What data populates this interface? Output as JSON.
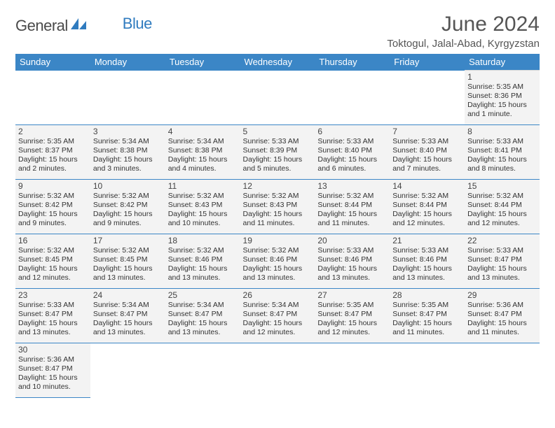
{
  "logo": {
    "text_general": "General",
    "text_blue": "Blue"
  },
  "header": {
    "month_title": "June 2024",
    "location": "Toktogul, Jalal-Abad, Kyrgyzstan"
  },
  "colors": {
    "header_bg": "#3b86c6",
    "header_text": "#ffffff",
    "cell_bg": "#f3f3f3",
    "cell_border_top": "#d9d9d9",
    "cell_border_bottom": "#3b86c6",
    "logo_blue": "#2f7bbf",
    "title_color": "#555555"
  },
  "typography": {
    "month_title_fontsize": 30,
    "location_fontsize": 15,
    "weekday_fontsize": 13,
    "daynum_fontsize": 12,
    "dayinfo_fontsize": 10.5
  },
  "calendar": {
    "weekdays": [
      "Sunday",
      "Monday",
      "Tuesday",
      "Wednesday",
      "Thursday",
      "Friday",
      "Saturday"
    ],
    "weeks": [
      [
        null,
        null,
        null,
        null,
        null,
        null,
        {
          "n": "1",
          "sunrise": "Sunrise: 5:35 AM",
          "sunset": "Sunset: 8:36 PM",
          "daylight": "Daylight: 15 hours and 1 minute."
        }
      ],
      [
        {
          "n": "2",
          "sunrise": "Sunrise: 5:35 AM",
          "sunset": "Sunset: 8:37 PM",
          "daylight": "Daylight: 15 hours and 2 minutes."
        },
        {
          "n": "3",
          "sunrise": "Sunrise: 5:34 AM",
          "sunset": "Sunset: 8:38 PM",
          "daylight": "Daylight: 15 hours and 3 minutes."
        },
        {
          "n": "4",
          "sunrise": "Sunrise: 5:34 AM",
          "sunset": "Sunset: 8:38 PM",
          "daylight": "Daylight: 15 hours and 4 minutes."
        },
        {
          "n": "5",
          "sunrise": "Sunrise: 5:33 AM",
          "sunset": "Sunset: 8:39 PM",
          "daylight": "Daylight: 15 hours and 5 minutes."
        },
        {
          "n": "6",
          "sunrise": "Sunrise: 5:33 AM",
          "sunset": "Sunset: 8:40 PM",
          "daylight": "Daylight: 15 hours and 6 minutes."
        },
        {
          "n": "7",
          "sunrise": "Sunrise: 5:33 AM",
          "sunset": "Sunset: 8:40 PM",
          "daylight": "Daylight: 15 hours and 7 minutes."
        },
        {
          "n": "8",
          "sunrise": "Sunrise: 5:33 AM",
          "sunset": "Sunset: 8:41 PM",
          "daylight": "Daylight: 15 hours and 8 minutes."
        }
      ],
      [
        {
          "n": "9",
          "sunrise": "Sunrise: 5:32 AM",
          "sunset": "Sunset: 8:42 PM",
          "daylight": "Daylight: 15 hours and 9 minutes."
        },
        {
          "n": "10",
          "sunrise": "Sunrise: 5:32 AM",
          "sunset": "Sunset: 8:42 PM",
          "daylight": "Daylight: 15 hours and 9 minutes."
        },
        {
          "n": "11",
          "sunrise": "Sunrise: 5:32 AM",
          "sunset": "Sunset: 8:43 PM",
          "daylight": "Daylight: 15 hours and 10 minutes."
        },
        {
          "n": "12",
          "sunrise": "Sunrise: 5:32 AM",
          "sunset": "Sunset: 8:43 PM",
          "daylight": "Daylight: 15 hours and 11 minutes."
        },
        {
          "n": "13",
          "sunrise": "Sunrise: 5:32 AM",
          "sunset": "Sunset: 8:44 PM",
          "daylight": "Daylight: 15 hours and 11 minutes."
        },
        {
          "n": "14",
          "sunrise": "Sunrise: 5:32 AM",
          "sunset": "Sunset: 8:44 PM",
          "daylight": "Daylight: 15 hours and 12 minutes."
        },
        {
          "n": "15",
          "sunrise": "Sunrise: 5:32 AM",
          "sunset": "Sunset: 8:44 PM",
          "daylight": "Daylight: 15 hours and 12 minutes."
        }
      ],
      [
        {
          "n": "16",
          "sunrise": "Sunrise: 5:32 AM",
          "sunset": "Sunset: 8:45 PM",
          "daylight": "Daylight: 15 hours and 12 minutes."
        },
        {
          "n": "17",
          "sunrise": "Sunrise: 5:32 AM",
          "sunset": "Sunset: 8:45 PM",
          "daylight": "Daylight: 15 hours and 13 minutes."
        },
        {
          "n": "18",
          "sunrise": "Sunrise: 5:32 AM",
          "sunset": "Sunset: 8:46 PM",
          "daylight": "Daylight: 15 hours and 13 minutes."
        },
        {
          "n": "19",
          "sunrise": "Sunrise: 5:32 AM",
          "sunset": "Sunset: 8:46 PM",
          "daylight": "Daylight: 15 hours and 13 minutes."
        },
        {
          "n": "20",
          "sunrise": "Sunrise: 5:33 AM",
          "sunset": "Sunset: 8:46 PM",
          "daylight": "Daylight: 15 hours and 13 minutes."
        },
        {
          "n": "21",
          "sunrise": "Sunrise: 5:33 AM",
          "sunset": "Sunset: 8:46 PM",
          "daylight": "Daylight: 15 hours and 13 minutes."
        },
        {
          "n": "22",
          "sunrise": "Sunrise: 5:33 AM",
          "sunset": "Sunset: 8:47 PM",
          "daylight": "Daylight: 15 hours and 13 minutes."
        }
      ],
      [
        {
          "n": "23",
          "sunrise": "Sunrise: 5:33 AM",
          "sunset": "Sunset: 8:47 PM",
          "daylight": "Daylight: 15 hours and 13 minutes."
        },
        {
          "n": "24",
          "sunrise": "Sunrise: 5:34 AM",
          "sunset": "Sunset: 8:47 PM",
          "daylight": "Daylight: 15 hours and 13 minutes."
        },
        {
          "n": "25",
          "sunrise": "Sunrise: 5:34 AM",
          "sunset": "Sunset: 8:47 PM",
          "daylight": "Daylight: 15 hours and 13 minutes."
        },
        {
          "n": "26",
          "sunrise": "Sunrise: 5:34 AM",
          "sunset": "Sunset: 8:47 PM",
          "daylight": "Daylight: 15 hours and 12 minutes."
        },
        {
          "n": "27",
          "sunrise": "Sunrise: 5:35 AM",
          "sunset": "Sunset: 8:47 PM",
          "daylight": "Daylight: 15 hours and 12 minutes."
        },
        {
          "n": "28",
          "sunrise": "Sunrise: 5:35 AM",
          "sunset": "Sunset: 8:47 PM",
          "daylight": "Daylight: 15 hours and 11 minutes."
        },
        {
          "n": "29",
          "sunrise": "Sunrise: 5:36 AM",
          "sunset": "Sunset: 8:47 PM",
          "daylight": "Daylight: 15 hours and 11 minutes."
        }
      ],
      [
        {
          "n": "30",
          "sunrise": "Sunrise: 5:36 AM",
          "sunset": "Sunset: 8:47 PM",
          "daylight": "Daylight: 15 hours and 10 minutes."
        },
        null,
        null,
        null,
        null,
        null,
        null
      ]
    ]
  }
}
